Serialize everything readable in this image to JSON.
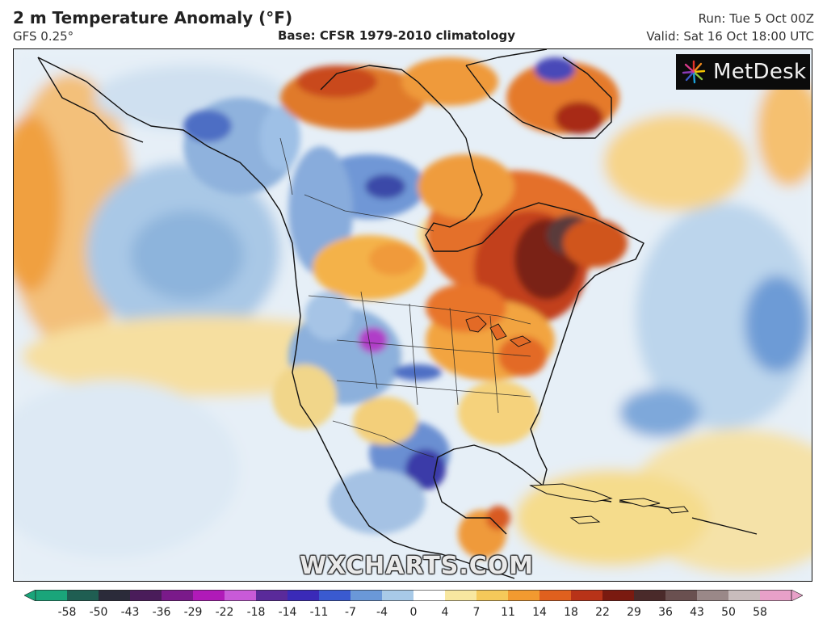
{
  "header": {
    "title": "2 m Temperature Anomaly (°F)",
    "model": "GFS 0.25°",
    "base": "Base: CFSR 1979-2010 climatology",
    "run": "Run: Tue 5 Oct 00Z",
    "valid": "Valid: Sat 16 Oct 18:00 UTC"
  },
  "logo": {
    "text": "MetDesk",
    "icon": "starburst-logo-icon"
  },
  "watermark": "WXCHARTS.COM",
  "map": {
    "region": "North America",
    "colors": {
      "ocean_base": "#eaf2f8",
      "cold_light": "#b9d3ea",
      "cold_mid": "#7fa8d8",
      "cold_deep": "#3e55b8",
      "cold_extreme": "#b03cc8",
      "warm_light": "#f5dc8c",
      "warm_mid": "#f2a03a",
      "warm_deep": "#d9581e",
      "warm_extreme": "#7a2014",
      "warm_max": "#4a3030",
      "coast": "#111111"
    }
  },
  "colorbar": {
    "labels": [
      "-58",
      "-50",
      "-43",
      "-36",
      "-29",
      "-22",
      "-18",
      "-14",
      "-11",
      "-7",
      "-4",
      "0",
      "4",
      "7",
      "11",
      "14",
      "18",
      "22",
      "29",
      "36",
      "43",
      "50",
      "58"
    ],
    "colors": [
      "#1aa57a",
      "#1f5e52",
      "#2b2b3a",
      "#4a1c5a",
      "#7a1a8a",
      "#b01ab8",
      "#c85ad8",
      "#5a2a9a",
      "#3a2ab8",
      "#3a5ad0",
      "#6a98d8",
      "#a8cae8",
      "#ffffff",
      "#f8e7a0",
      "#f5c95a",
      "#f29a30",
      "#e0601e",
      "#b83318",
      "#7a1a10",
      "#4a2a2a",
      "#6a5050",
      "#9a8888",
      "#c8bcbc",
      "#e8a0c8"
    ]
  }
}
